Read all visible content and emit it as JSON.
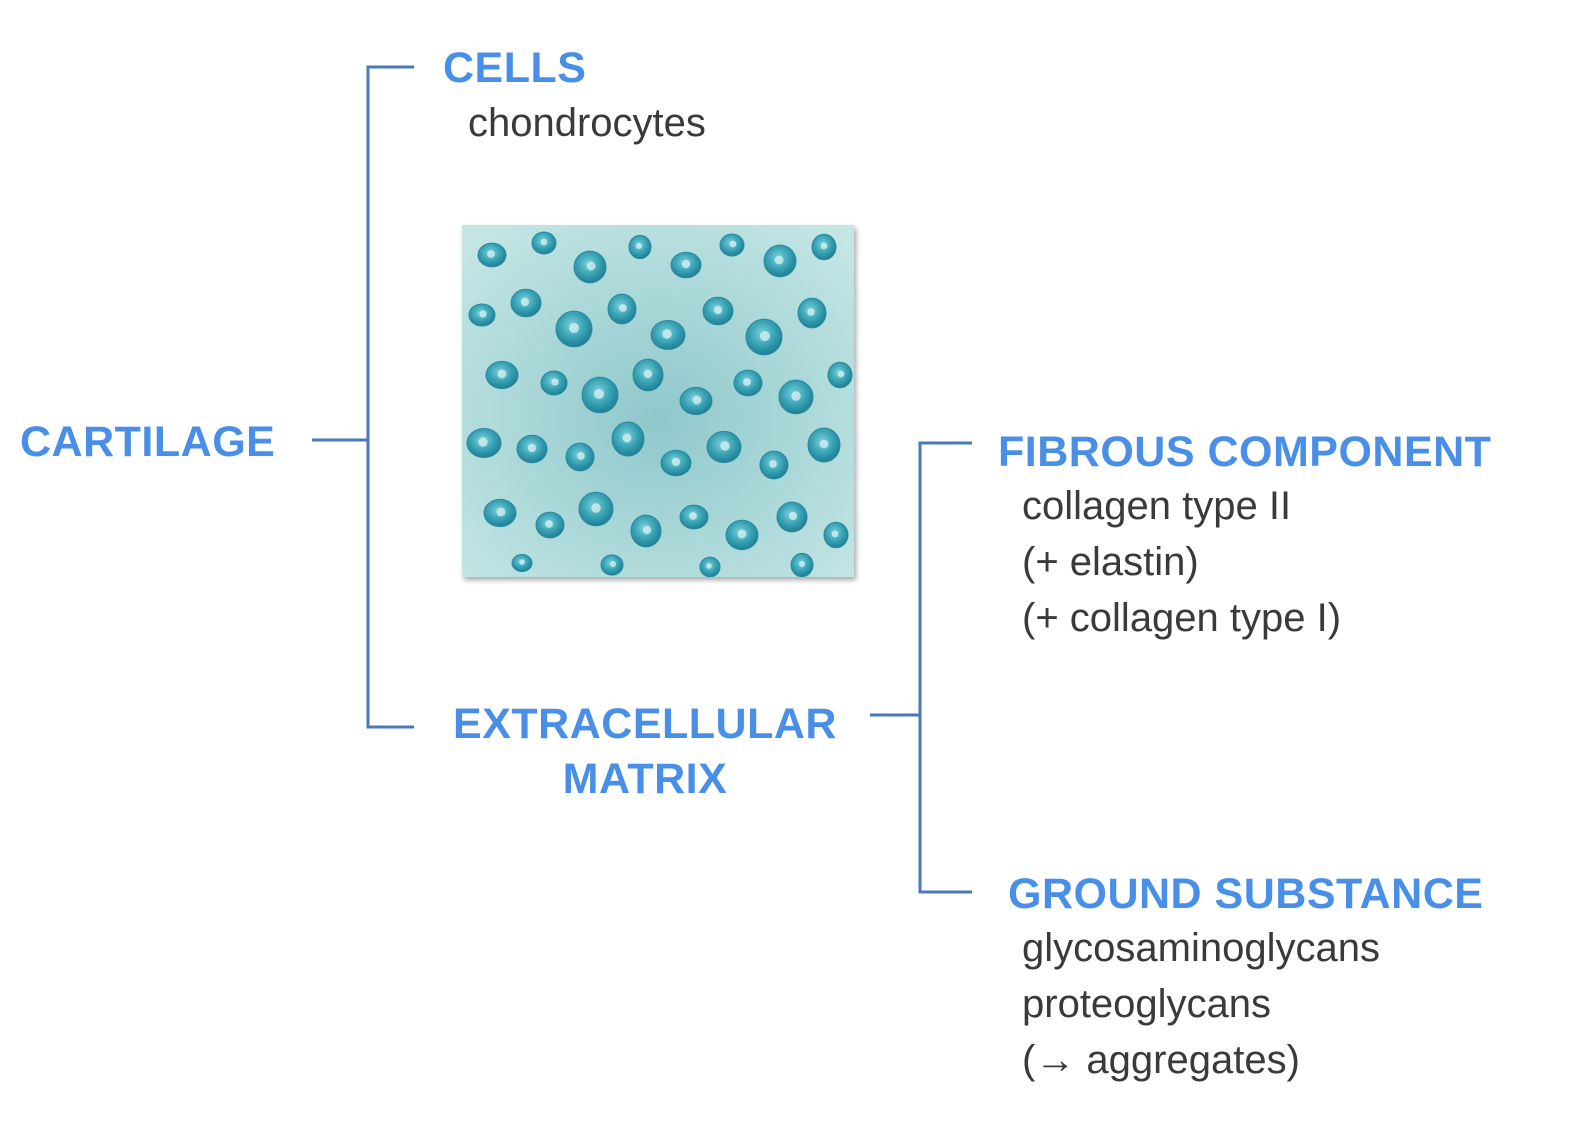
{
  "diagram": {
    "root": {
      "label": "CARTILAGE"
    },
    "cells": {
      "label": "CELLS",
      "items": [
        "chondrocytes"
      ]
    },
    "extracellular_matrix": {
      "label_lines": [
        "EXTRACELLULAR",
        "MATRIX"
      ]
    },
    "fibrous_component": {
      "label": "FIBROUS COMPONENT",
      "items": [
        "collagen type II",
        "(+ elastin)",
        "(+ collagen type I)"
      ]
    },
    "ground_substance": {
      "label": "GROUND SUBSTANCE",
      "items": [
        "glycosaminoglycans",
        "proteoglycans",
        "(→ aggregates)"
      ]
    }
  },
  "colors": {
    "label": "#4a8fe7",
    "connector": "#4a78b8",
    "text": "#3a3a3a",
    "tissue_background": "#a9d6d6",
    "cell": "#3aa4b6"
  },
  "image": {
    "icon": "chondrocyte-micrograph"
  }
}
